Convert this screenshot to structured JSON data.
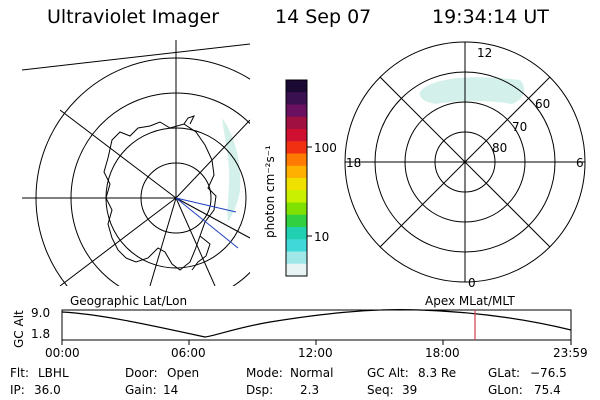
{
  "header": {
    "instrument": "Ultraviolet Imager",
    "date": "14 Sep 07",
    "time": "19:34:14 UT"
  },
  "colorbar": {
    "unit_label": "photon cm⁻²s⁻¹",
    "ticks": [
      "100",
      "10"
    ],
    "colors_top_to_bottom": [
      "#1a0a33",
      "#3a1050",
      "#6a1060",
      "#a01040",
      "#d01030",
      "#f03010",
      "#ff7a00",
      "#ffb000",
      "#f0e000",
      "#c8f000",
      "#80e000",
      "#30d040",
      "#20d0b0",
      "#40d8d8",
      "#a0e8e8",
      "#e8f4f4"
    ]
  },
  "left_map": {
    "label": "Geographic Lat/Lon"
  },
  "right_map": {
    "label": "Apex MLat/MLT",
    "mlt_labels": {
      "top": "12",
      "left": "18",
      "right": "6",
      "bottom": "0"
    },
    "lat_labels": [
      "60",
      "70",
      "80"
    ]
  },
  "altitude_plot": {
    "y_label": "GC Alt",
    "y_ticks": [
      "9.0",
      "1.8"
    ],
    "x_ticks": [
      "00:00",
      "06:00",
      "12:00",
      "18:00",
      "23:59"
    ],
    "marker_time": "19:34",
    "marker_color": "#d04050"
  },
  "status": {
    "flt_label": "Flt:",
    "flt_value": "LBHL",
    "ip_label": "IP:",
    "ip_value": "36.0",
    "door_label": "Door:",
    "door_value": "Open",
    "gain_label": "Gain:",
    "gain_value": "14",
    "mode_label": "Mode:",
    "mode_value": "Normal",
    "dsp_label": "Dsp:",
    "dsp_value": "2.3",
    "gcalt_label": "GC Alt:",
    "gcalt_value": "8.3 Re",
    "seq_label": "Seq:",
    "seq_value": "39",
    "glat_label": "GLat:",
    "glat_value": "−76.5",
    "glon_label": "GLon:",
    "glon_value": "75.4"
  }
}
